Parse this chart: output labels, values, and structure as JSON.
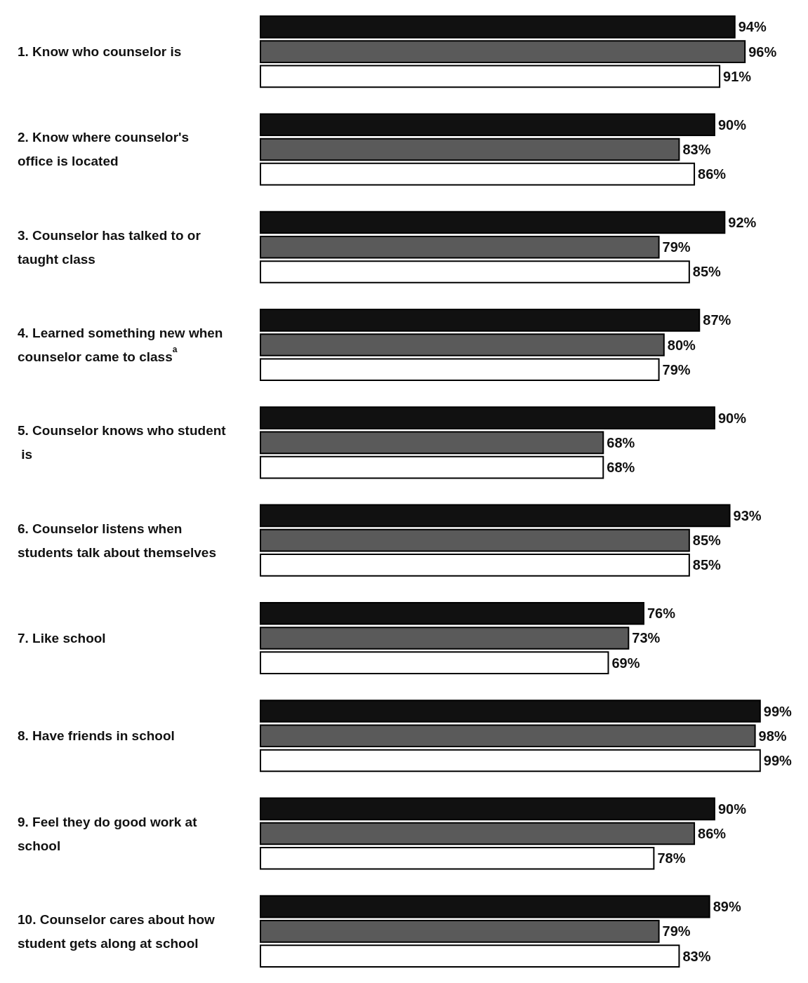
{
  "chart_data": {
    "type": "bar",
    "orientation": "horizontal",
    "categories": [
      "1. Know who counselor is",
      "2. Know where counselor's office is located",
      "3. Counselor has talked to or taught class",
      "4. Learned something new when counselor came to class$^{a}$",
      "5. Counselor knows who student is",
      "6. Counselor listens when students talk about themselves",
      "7. Like school",
      "8. Have friends in school",
      "9. Feel they do good work at school",
      "10. Counselor cares about how student gets along at school"
    ],
    "series": [
      {
        "color": "#111111",
        "values": [
          94,
          90,
          92,
          87,
          90,
          93,
          76,
          99,
          90,
          89
        ],
        "value_labels": [
          "94%",
          "90%",
          "92%",
          "87%",
          "90%",
          "93%",
          "76%",
          "99%",
          "90%",
          "89%"
        ]
      },
      {
        "color": "#5a5a5a",
        "values": [
          96,
          83,
          79,
          80,
          68,
          85,
          73,
          98,
          86,
          79
        ],
        "value_labels": [
          "96%",
          "83%",
          "79%",
          "80%",
          "68%",
          "85%",
          "73%",
          "98%",
          "86%",
          "79%"
        ]
      },
      {
        "color": "#ffffff",
        "values": [
          91,
          86,
          85,
          79,
          68,
          85,
          69,
          99,
          78,
          83
        ],
        "value_labels": [
          "91%",
          "86%",
          "85%",
          "79%",
          "68%",
          "85%",
          "69%",
          "99%",
          "78%",
          "83%"
        ]
      }
    ],
    "grid": false
  }
}
